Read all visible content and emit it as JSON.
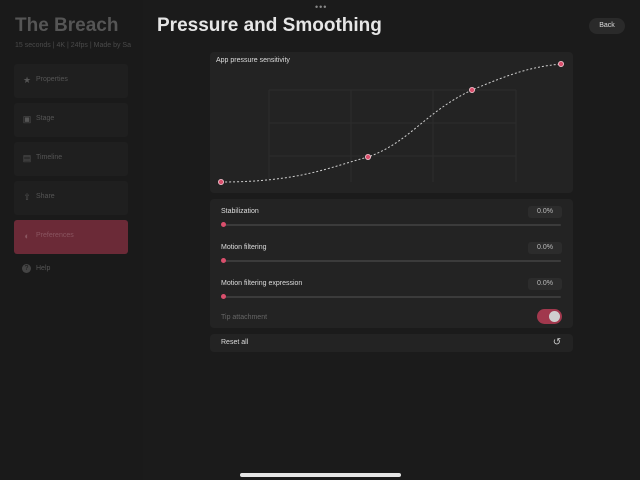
{
  "background_app": {
    "title": "The Breach",
    "meta": "15 seconds  |  4K  |  24fps  |  Made by Sa",
    "items": [
      {
        "label": "Properties",
        "icon": "star-icon"
      },
      {
        "label": "Stage",
        "icon": "image-icon"
      },
      {
        "label": "Timeline",
        "icon": "timeline-icon"
      },
      {
        "label": "Share",
        "icon": "share-icon"
      },
      {
        "label": "Preferences",
        "icon": "toggle-icon"
      }
    ],
    "help": {
      "label": "Help",
      "icon": "help-icon"
    }
  },
  "sheet": {
    "title": "Pressure and Smoothing",
    "back_label": "Back",
    "grabber": "•••"
  },
  "curve": {
    "title": "App pressure sensitivity",
    "accent_color": "#d94f6c"
  },
  "sliders": [
    {
      "label": "Stabilization",
      "value_text": "0.0%",
      "value": 0
    },
    {
      "label": "Motion filtering",
      "value_text": "0.0%",
      "value": 0
    },
    {
      "label": "Motion filtering expression",
      "value_text": "0.0%",
      "value": 0
    }
  ],
  "tip_attachment": {
    "label": "Tip attachment",
    "enabled": true
  },
  "reset": {
    "label": "Reset all",
    "icon": "reset-icon"
  }
}
